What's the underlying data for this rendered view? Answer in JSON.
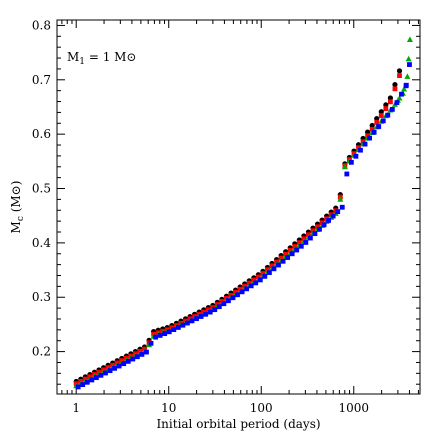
{
  "chart_data": {
    "type": "scatter",
    "title": "",
    "xlabel": "Initial orbital period (days)",
    "ylabel_main": "M",
    "ylabel_sub": "c",
    "ylabel_unit": "(M⊙)",
    "xscale": "log",
    "xlim": [
      0.62,
      5200
    ],
    "ylim": [
      0.122,
      0.81
    ],
    "grid": false,
    "legend": "none",
    "annotation": {
      "main": "M",
      "sub": "1",
      "rest": " = 1 M⊙",
      "position": "top-left"
    },
    "xticks": [
      {
        "value": 1,
        "label": "1"
      },
      {
        "value": 10,
        "label": "10"
      },
      {
        "value": 100,
        "label": "100"
      },
      {
        "value": 1000,
        "label": "1000"
      }
    ],
    "yticks": [
      {
        "value": 0.2,
        "label": "0.2"
      },
      {
        "value": 0.3,
        "label": "0.3"
      },
      {
        "value": 0.4,
        "label": "0.4"
      },
      {
        "value": 0.5,
        "label": "0.5"
      },
      {
        "value": 0.6,
        "label": "0.6"
      },
      {
        "value": 0.7,
        "label": "0.7"
      },
      {
        "value": 0.8,
        "label": "0.8"
      }
    ],
    "series": [
      {
        "marker": "circle",
        "color": "#000000",
        "x_start": 1.0,
        "x_step": 1.12,
        "count": 20,
        "x_extra": [],
        "anchors": [
          [
            1.0,
            0.145
          ],
          [
            6.0,
            0.212
          ],
          [
            6.35,
            0.235
          ],
          [
            10.0,
            0.245
          ],
          [
            30.0,
            0.285
          ],
          [
            100.0,
            0.345
          ],
          [
            300.0,
            0.415
          ],
          [
            700.0,
            0.47
          ],
          [
            760.0,
            0.54
          ],
          [
            1500.0,
            0.61
          ],
          [
            2500.0,
            0.667
          ],
          [
            3200.0,
            0.722
          ]
        ]
      },
      {
        "marker": "square",
        "color": "#ff0000",
        "x_start": 1.0,
        "x_step": 1.12,
        "count": 20,
        "x_extra": [],
        "anchors": [
          [
            1.0,
            0.141
          ],
          [
            6.0,
            0.208
          ],
          [
            6.35,
            0.23
          ],
          [
            10.0,
            0.241
          ],
          [
            30.0,
            0.281
          ],
          [
            100.0,
            0.341
          ],
          [
            300.0,
            0.41
          ],
          [
            700.0,
            0.465
          ],
          [
            760.0,
            0.537
          ],
          [
            1500.0,
            0.603
          ],
          [
            2500.0,
            0.66
          ],
          [
            3400.0,
            0.726
          ]
        ]
      },
      {
        "marker": "triangle",
        "color": "#00aa00",
        "x_start": 1.0,
        "x_step": 1.12,
        "count": 20,
        "x_extra": [
          3000.0,
          3400.0,
          3800.0,
          4050.0
        ],
        "anchors": [
          [
            1.0,
            0.137
          ],
          [
            6.0,
            0.204
          ],
          [
            6.35,
            0.226
          ],
          [
            10.0,
            0.238
          ],
          [
            30.0,
            0.277
          ],
          [
            100.0,
            0.336
          ],
          [
            300.0,
            0.405
          ],
          [
            700.0,
            0.46
          ],
          [
            760.0,
            0.535
          ],
          [
            1500.0,
            0.598
          ],
          [
            2800.0,
            0.655
          ],
          [
            3400.0,
            0.675
          ],
          [
            3800.0,
            0.706
          ],
          [
            4050.0,
            0.774
          ]
        ]
      },
      {
        "marker": "square",
        "color": "#0000ff",
        "x_start": 1.05,
        "x_step": 1.12,
        "count": 20,
        "x_extra": [
          3700.0,
          4000.0
        ],
        "anchors": [
          [
            1.05,
            0.135
          ],
          [
            6.2,
            0.202
          ],
          [
            6.6,
            0.224
          ],
          [
            10.0,
            0.236
          ],
          [
            30.0,
            0.275
          ],
          [
            100.0,
            0.333
          ],
          [
            300.0,
            0.4
          ],
          [
            800.0,
            0.47
          ],
          [
            850.0,
            0.538
          ],
          [
            1500.0,
            0.594
          ],
          [
            2800.0,
            0.652
          ],
          [
            3700.0,
            0.69
          ],
          [
            4000.0,
            0.728
          ]
        ]
      }
    ]
  }
}
